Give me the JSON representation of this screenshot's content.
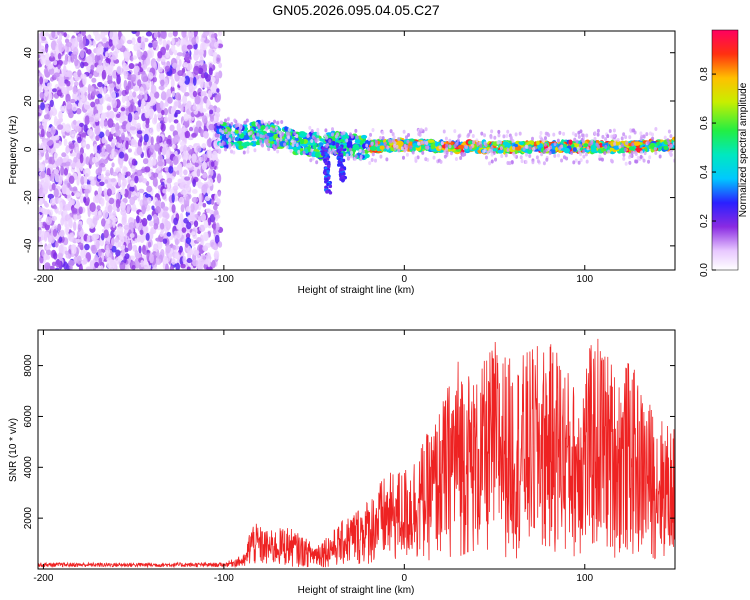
{
  "title": "GN05.2026.095.04.05.C27",
  "chart_data": [
    {
      "type": "heatmap",
      "name": "spectrogram",
      "xlabel": "Height of straight line (km)",
      "ylabel": "Frequency (Hz)",
      "xlim": [
        -203,
        150
      ],
      "ylim": [
        -50,
        49
      ],
      "xticks": [
        -200,
        -100,
        0,
        100
      ],
      "yticks": [
        -40,
        -20,
        0,
        20,
        40
      ],
      "noise_region_x": [
        -203,
        -102
      ],
      "signal_start_x": -103,
      "ridge": [
        {
          "x": -110,
          "f": 7
        },
        {
          "x": -100,
          "f": 6
        },
        {
          "x": -90,
          "f": 5
        },
        {
          "x": -80,
          "f": 7
        },
        {
          "x": -70,
          "f": 5
        },
        {
          "x": -60,
          "f": 3
        },
        {
          "x": -50,
          "f": 2
        },
        {
          "x": -45,
          "f": 0
        },
        {
          "x": -40,
          "f": 3
        },
        {
          "x": -30,
          "f": 1
        },
        {
          "x": -20,
          "f": 1
        },
        {
          "x": 0,
          "f": 2
        },
        {
          "x": 25,
          "f": 1
        },
        {
          "x": 50,
          "f": 1
        },
        {
          "x": 75,
          "f": 1
        },
        {
          "x": 100,
          "f": 1
        },
        {
          "x": 125,
          "f": 1
        },
        {
          "x": 150,
          "f": 2
        }
      ],
      "colorbar": {
        "label": "Normalized spectral amplitude",
        "range": [
          0.0,
          0.98
        ],
        "ticks": [
          0.0,
          0.2,
          0.4,
          0.6,
          0.8
        ],
        "tick_labels": [
          "0.0",
          "0.2",
          "0.4",
          "0.6",
          "0.8"
        ]
      }
    },
    {
      "type": "line",
      "name": "snr",
      "xlabel": "Height of straight line (km)",
      "ylabel": "SNR (10 * v/v)",
      "xlim": [
        -203,
        150
      ],
      "ylim": [
        0,
        9400
      ],
      "xticks": [
        -200,
        -100,
        0,
        100
      ],
      "yticks": [
        2000,
        4000,
        6000,
        8000
      ],
      "color": "#ee2222",
      "envelope": [
        {
          "x": -203,
          "v": 250
        },
        {
          "x": -100,
          "v": 250
        },
        {
          "x": -88,
          "v": 600
        },
        {
          "x": -85,
          "v": 1900
        },
        {
          "x": -75,
          "v": 1500
        },
        {
          "x": -65,
          "v": 1700
        },
        {
          "x": -50,
          "v": 1000
        },
        {
          "x": -40,
          "v": 1500
        },
        {
          "x": -30,
          "v": 2200
        },
        {
          "x": -20,
          "v": 2800
        },
        {
          "x": -12,
          "v": 3600
        },
        {
          "x": -5,
          "v": 3900
        },
        {
          "x": 0,
          "v": 4000
        },
        {
          "x": 8,
          "v": 4800
        },
        {
          "x": 15,
          "v": 5600
        },
        {
          "x": 22,
          "v": 6800
        },
        {
          "x": 30,
          "v": 8500
        },
        {
          "x": 40,
          "v": 7500
        },
        {
          "x": 50,
          "v": 9100
        },
        {
          "x": 60,
          "v": 8200
        },
        {
          "x": 72,
          "v": 8800
        },
        {
          "x": 85,
          "v": 8900
        },
        {
          "x": 95,
          "v": 7200
        },
        {
          "x": 100,
          "v": 8500
        },
        {
          "x": 108,
          "v": 9300
        },
        {
          "x": 118,
          "v": 7800
        },
        {
          "x": 125,
          "v": 8300
        },
        {
          "x": 132,
          "v": 7000
        },
        {
          "x": 140,
          "v": 6200
        },
        {
          "x": 150,
          "v": 5500
        }
      ]
    }
  ]
}
